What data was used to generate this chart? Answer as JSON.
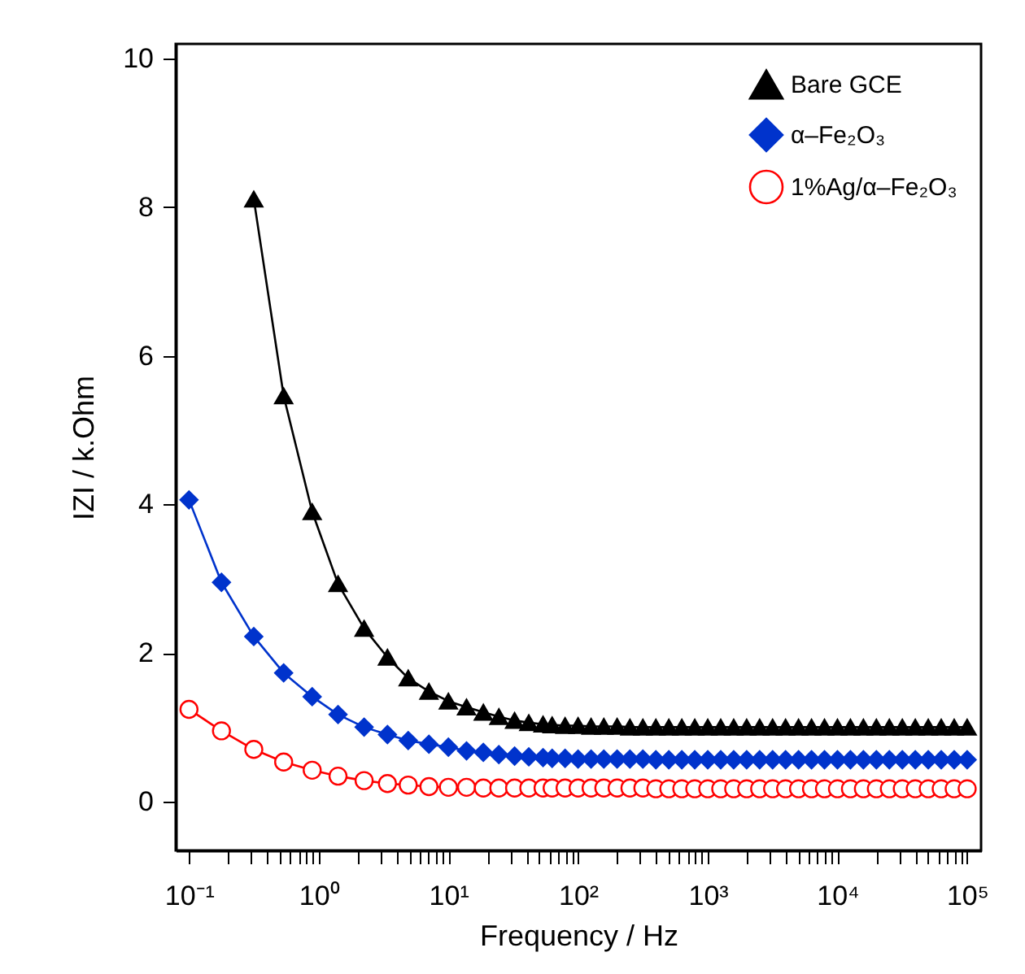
{
  "chart_data": {
    "type": "line",
    "xlabel": "Frequency / Hz",
    "ylabel": "IZI / k.Ohm",
    "log": "x",
    "grid": false,
    "legend": "top right",
    "x": [
      0.1,
      0.178,
      0.316,
      0.537,
      0.891,
      1.41,
      2.24,
      3.39,
      4.9,
      7.08,
      10,
      13.8,
      18.6,
      24.5,
      32.4,
      41.7,
      53.7,
      63.1,
      79.4,
      100,
      126,
      158,
      200,
      251,
      316,
      398,
      501,
      631,
      794,
      1000,
      1259,
      1585,
      1995,
      2512,
      3162,
      3981,
      5012,
      6310,
      7943,
      10000,
      12589,
      15849,
      19953,
      25119,
      31623,
      39811,
      50119,
      63096,
      79433,
      100000
    ],
    "series": [
      {
        "name": "Bare GCE",
        "color": "#000000",
        "marker": "triangle",
        "values": [
          null,
          null,
          8.11,
          5.46,
          3.9,
          2.93,
          2.33,
          1.94,
          1.66,
          1.48,
          1.35,
          1.27,
          1.2,
          1.14,
          1.09,
          1.06,
          1.04,
          1.03,
          1.02,
          1.02,
          1.01,
          1.01,
          1.01,
          1.0,
          1.0,
          1.0,
          1.0,
          1.0,
          1.0,
          1.0,
          1.0,
          1.0,
          1.0,
          1.0,
          1.0,
          1.0,
          1.0,
          1.0,
          1.0,
          1.0,
          1.0,
          1.0,
          1.0,
          1.0,
          1.0,
          1.0,
          1.0,
          1.0,
          1.0,
          1.0
        ]
      },
      {
        "name": "α–Fe₂O₃",
        "color": "#0033cc",
        "marker": "diamond",
        "values": [
          4.06,
          2.95,
          2.22,
          1.73,
          1.41,
          1.17,
          1.0,
          0.9,
          0.82,
          0.77,
          0.73,
          0.68,
          0.66,
          0.63,
          0.61,
          0.6,
          0.59,
          0.58,
          0.58,
          0.57,
          0.57,
          0.57,
          0.57,
          0.57,
          0.57,
          0.56,
          0.56,
          0.56,
          0.56,
          0.56,
          0.56,
          0.56,
          0.56,
          0.56,
          0.56,
          0.56,
          0.56,
          0.56,
          0.56,
          0.56,
          0.56,
          0.56,
          0.56,
          0.56,
          0.56,
          0.56,
          0.56,
          0.56,
          0.56,
          0.56
        ]
      },
      {
        "name": "1%Ag/α–Fe₂O₃",
        "color": "#ff0000",
        "marker": "circle",
        "values": [
          1.24,
          0.95,
          0.7,
          0.53,
          0.42,
          0.34,
          0.28,
          0.24,
          0.22,
          0.2,
          0.19,
          0.19,
          0.18,
          0.18,
          0.18,
          0.18,
          0.18,
          0.18,
          0.18,
          0.18,
          0.18,
          0.18,
          0.18,
          0.18,
          0.18,
          0.17,
          0.17,
          0.17,
          0.17,
          0.17,
          0.17,
          0.17,
          0.17,
          0.17,
          0.17,
          0.17,
          0.17,
          0.17,
          0.17,
          0.17,
          0.17,
          0.17,
          0.17,
          0.17,
          0.17,
          0.17,
          0.17,
          0.17,
          0.17,
          0.17
        ]
      }
    ],
    "xlim": [
      0.079,
      128000
    ],
    "ylim": [
      -0.66,
      10.2
    ],
    "yticks": [
      0,
      2,
      4,
      6,
      8,
      10
    ],
    "xticks": [
      {
        "value": 0.1,
        "label": "10⁻¹"
      },
      {
        "value": 0.2,
        "label": null
      },
      {
        "value": 0.3,
        "label": null
      },
      {
        "value": 0.4,
        "label": null
      },
      {
        "value": 0.5,
        "label": null
      },
      {
        "value": 0.6,
        "label": null
      },
      {
        "value": 0.7,
        "label": null
      },
      {
        "value": 0.8,
        "label": null
      },
      {
        "value": 0.9,
        "label": null
      },
      {
        "value": 1,
        "label": "10⁰"
      },
      {
        "value": 2,
        "label": null
      },
      {
        "value": 3,
        "label": null
      },
      {
        "value": 4,
        "label": null
      },
      {
        "value": 5,
        "label": null
      },
      {
        "value": 6,
        "label": null
      },
      {
        "value": 7,
        "label": null
      },
      {
        "value": 8,
        "label": null
      },
      {
        "value": 9,
        "label": null
      },
      {
        "value": 10,
        "label": "10¹"
      },
      {
        "value": 20,
        "label": null
      },
      {
        "value": 30,
        "label": null
      },
      {
        "value": 40,
        "label": null
      },
      {
        "value": 50,
        "label": null
      },
      {
        "value": 60,
        "label": null
      },
      {
        "value": 70,
        "label": null
      },
      {
        "value": 80,
        "label": null
      },
      {
        "value": 90,
        "label": null
      },
      {
        "value": 100,
        "label": "10²"
      },
      {
        "value": 200,
        "label": null
      },
      {
        "value": 300,
        "label": null
      },
      {
        "value": 400,
        "label": null
      },
      {
        "value": 500,
        "label": null
      },
      {
        "value": 600,
        "label": null
      },
      {
        "value": 700,
        "label": null
      },
      {
        "value": 800,
        "label": null
      },
      {
        "value": 900,
        "label": null
      },
      {
        "value": 1000,
        "label": "10³"
      },
      {
        "value": 2000,
        "label": null
      },
      {
        "value": 3000,
        "label": null
      },
      {
        "value": 4000,
        "label": null
      },
      {
        "value": 5000,
        "label": null
      },
      {
        "value": 6000,
        "label": null
      },
      {
        "value": 7000,
        "label": null
      },
      {
        "value": 8000,
        "label": null
      },
      {
        "value": 9000,
        "label": null
      },
      {
        "value": 10000,
        "label": "10⁴"
      },
      {
        "value": 20000,
        "label": null
      },
      {
        "value": 30000,
        "label": null
      },
      {
        "value": 40000,
        "label": null
      },
      {
        "value": 50000,
        "label": null
      },
      {
        "value": 60000,
        "label": null
      },
      {
        "value": 70000,
        "label": null
      },
      {
        "value": 80000,
        "label": null
      },
      {
        "value": 90000,
        "label": null
      },
      {
        "value": 100000,
        "label": "10⁵"
      }
    ]
  }
}
